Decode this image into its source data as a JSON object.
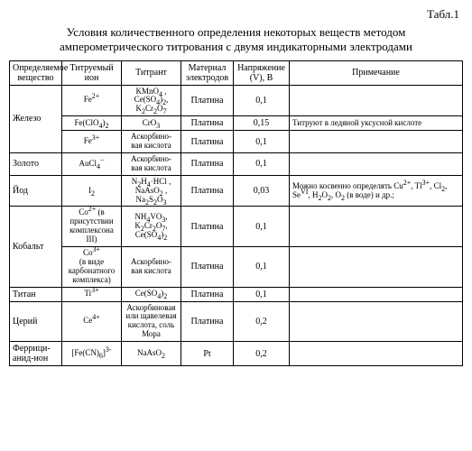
{
  "label": "Табл.1",
  "title_l1": "Условия количественного определения некоторых веществ методом",
  "title_l2": "амперометрического титрования с двумя индикаторными электродами",
  "col_widths": [
    "58px",
    "66px",
    "66px",
    "58px",
    "62px",
    "auto"
  ],
  "headers": [
    "Определяемое вещество",
    "Титруемый ион",
    "Титрант",
    "Материал электродов",
    "Напряжение (V), В",
    "Примечание"
  ],
  "rows": [
    {
      "sub": "Железо",
      "sub_rows": 3,
      "ion": "Fe<sup>2+</sup>",
      "titr": "KMnO<sub>4</sub> ,<br>Ce(SO<sub>4</sub>)<sub>2</sub>,<br>K<sub>2</sub>Cr<sub>2</sub>O<sub>7</sub>",
      "mat": "Платина",
      "v": "0,1",
      "note": ""
    },
    {
      "ion": "Fe(ClO<sub>4</sub>)<sub>2</sub>",
      "titr": "CrO<sub>3</sub>",
      "mat": "Платина",
      "v": "0,15",
      "note": "Титруют в ледяной уксусной кислоте"
    },
    {
      "ion": "Fe<sup>3+</sup>",
      "titr": "Аскорбино-<br>вая кислота",
      "mat": "Платина",
      "v": "0,1",
      "note": ""
    },
    {
      "sub": "Золото",
      "sub_rows": 1,
      "ion": "AuCl<sub>4</sub><sup>−</sup>",
      "titr": "Аскорбино-<br>вая кислота",
      "mat": "Платина",
      "v": "0,1",
      "note": ""
    },
    {
      "sub": "Йод",
      "sub_rows": 1,
      "ion": "I<sub>2</sub>",
      "titr": "N<sub>2</sub>H<sub>4</sub>·HCl ,<br>NaAsO<sub>2</sub> ,<br>Na<sub>2</sub>S<sub>2</sub>O<sub>3</sub>",
      "mat": "Платина",
      "v": "0,03",
      "note": "Можно косвенно определять Cu<sup>2+</sup>, Tl<sup>3+</sup>, Cl<sub>2</sub>, Se<sup>VI</sup>, H<sub>2</sub>O<sub>2</sub>, O<sub>2</sub> (в воде) и др.;"
    },
    {
      "sub": "Кобальт",
      "sub_rows": 2,
      "ion": "Co<sup>2+</sup> (в присутствии комплексона III)",
      "titr": "NH<sub>4</sub>VO<sub>3</sub>,<br>K<sub>2</sub>Cr<sub>2</sub>O<sub>7</sub>,<br>Ce(SO<sub>4</sub>)<sub>2</sub>",
      "mat": "Платина",
      "v": "0,1",
      "note": ""
    },
    {
      "ion": "Co<sup>3+</sup><br>(в виде карбонатного комплекса)",
      "titr": "Аскорбино-<br>вая кислота",
      "mat": "Платина",
      "v": "0,1",
      "note": ""
    },
    {
      "sub": "Титан",
      "sub_rows": 1,
      "ion": "Ti<sup>3+</sup>",
      "titr": "Ce(SO<sub>4</sub>)<sub>2</sub>",
      "mat": "Платина",
      "v": "0,1",
      "note": ""
    },
    {
      "sub": "Церий",
      "sub_rows": 1,
      "ion": "Ce<sup>4+</sup>",
      "titr": "Аскорбиновая или щавелевая кислота, соль Мора",
      "mat": "Платина",
      "v": "0,2",
      "note": ""
    },
    {
      "sub": "Феррици-анид-ион",
      "sub_rows": 1,
      "ion": "[Fe(CN)<sub>6</sub>]<sup>3-</sup>",
      "titr": "NaAsO<sub>2</sub>",
      "mat": "Pt",
      "v": "0,2",
      "note": ""
    }
  ]
}
